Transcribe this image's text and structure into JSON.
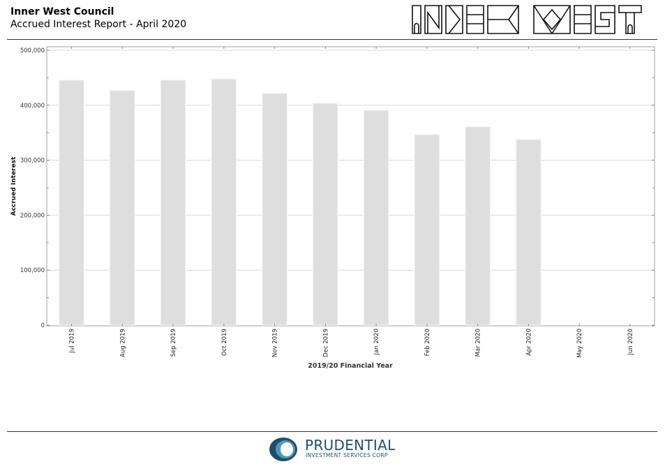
{
  "header": {
    "org_name": "Inner West Council",
    "report_title": "Accrued Interest Report - April 2020",
    "logo_text": "INNER WEST"
  },
  "footer": {
    "brand_name": "PRUDENTIAL",
    "brand_sub": "INVESTMENT SERVICES CORP"
  },
  "colors": {
    "bar_fill": "#dedede",
    "bar_edge": "#f7f7f7",
    "grid": "#d8d8d8",
    "plot_border": "#a0a0a0",
    "brand_blue": "#1f4e6b",
    "brand_teal": "#4a9bb8"
  },
  "chart_data": {
    "type": "bar",
    "title": "",
    "xlabel": "2019/20 Financial Year",
    "ylabel": "Accrued Interest",
    "categories": [
      "Jul 2019",
      "Aug 2019",
      "Sep 2019",
      "Oct 2019",
      "Nov 2019",
      "Dec 2019",
      "Jan 2020",
      "Feb 2020",
      "Mar 2020",
      "Apr 2020",
      "May 2020",
      "Jun 2020"
    ],
    "values": [
      446000,
      427000,
      446000,
      448000,
      422000,
      404000,
      391000,
      347000,
      361000,
      338000,
      null,
      null
    ],
    "ylim": [
      0,
      500000
    ],
    "yticks": [
      0,
      100000,
      200000,
      300000,
      400000,
      500000
    ],
    "ytick_labels": [
      "0",
      "100,000",
      "200,000",
      "300,000",
      "400,000",
      "500,000"
    ],
    "grid": true,
    "legend": "none"
  }
}
